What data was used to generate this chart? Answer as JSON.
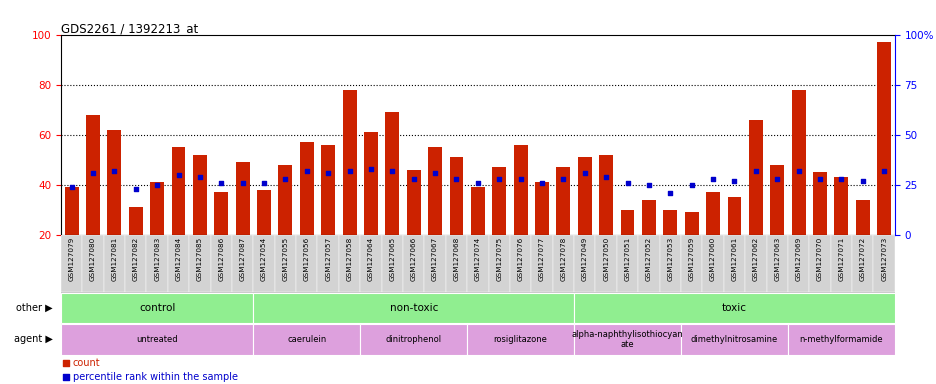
{
  "title": "GDS2261 / 1392213_at",
  "samples": [
    "GSM127079",
    "GSM127080",
    "GSM127081",
    "GSM127082",
    "GSM127083",
    "GSM127084",
    "GSM127085",
    "GSM127086",
    "GSM127087",
    "GSM127054",
    "GSM127055",
    "GSM127056",
    "GSM127057",
    "GSM127058",
    "GSM127064",
    "GSM127065",
    "GSM127066",
    "GSM127067",
    "GSM127068",
    "GSM127074",
    "GSM127075",
    "GSM127076",
    "GSM127077",
    "GSM127078",
    "GSM127049",
    "GSM127050",
    "GSM127051",
    "GSM127052",
    "GSM127053",
    "GSM127059",
    "GSM127060",
    "GSM127061",
    "GSM127062",
    "GSM127063",
    "GSM127069",
    "GSM127070",
    "GSM127071",
    "GSM127072",
    "GSM127073"
  ],
  "counts": [
    39,
    68,
    62,
    31,
    41,
    55,
    52,
    37,
    49,
    38,
    48,
    57,
    56,
    78,
    61,
    69,
    46,
    55,
    51,
    39,
    47,
    56,
    41,
    47,
    51,
    52,
    30,
    34,
    30,
    29,
    37,
    35,
    66,
    48,
    78,
    45,
    43,
    34,
    97
  ],
  "percentile_ranks": [
    24,
    31,
    32,
    23,
    25,
    30,
    29,
    26,
    26,
    26,
    28,
    32,
    31,
    32,
    33,
    32,
    28,
    31,
    28,
    26,
    28,
    28,
    26,
    28,
    31,
    29,
    26,
    25,
    21,
    25,
    28,
    27,
    32,
    28,
    32,
    28,
    28,
    27,
    32
  ],
  "bar_color": "#CC2200",
  "dot_color": "#0000CC",
  "ylim_left": [
    20,
    100
  ],
  "ylim_right": [
    0,
    100
  ],
  "yticks_left": [
    20,
    40,
    60,
    80,
    100
  ],
  "yticks_right": [
    0,
    25,
    50,
    75,
    100
  ],
  "other_group_boundaries": [
    0,
    9,
    24,
    39
  ],
  "other_group_labels": [
    "control",
    "non-toxic",
    "toxic"
  ],
  "other_group_color": "#90EE90",
  "agent_group_boundaries": [
    0,
    9,
    14,
    19,
    24,
    29,
    34,
    39
  ],
  "agent_group_labels": [
    "untreated",
    "caerulein",
    "dinitrophenol",
    "rosiglitazone",
    "alpha-naphthylisothiocyan\nate",
    "dimethylnitrosamine",
    "n-methylformamide"
  ],
  "agent_group_color": "#DDA0DD",
  "row_bg_color": "#C8C8C8",
  "xlabel_bg_color": "#D0D0D0"
}
